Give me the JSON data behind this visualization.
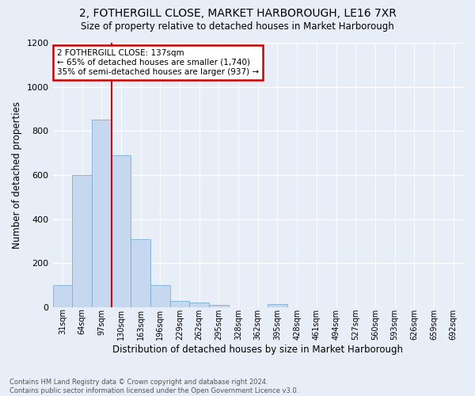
{
  "title": "2, FOTHERGILL CLOSE, MARKET HARBOROUGH, LE16 7XR",
  "subtitle": "Size of property relative to detached houses in Market Harborough",
  "xlabel": "Distribution of detached houses by size in Market Harborough",
  "ylabel": "Number of detached properties",
  "footer_line1": "Contains HM Land Registry data © Crown copyright and database right 2024.",
  "footer_line2": "Contains public sector information licensed under the Open Government Licence v3.0.",
  "bar_labels": [
    "31sqm",
    "64sqm",
    "97sqm",
    "130sqm",
    "163sqm",
    "196sqm",
    "229sqm",
    "262sqm",
    "295sqm",
    "328sqm",
    "362sqm",
    "395sqm",
    "428sqm",
    "461sqm",
    "494sqm",
    "527sqm",
    "560sqm",
    "593sqm",
    "626sqm",
    "659sqm",
    "692sqm"
  ],
  "bar_values": [
    100,
    600,
    850,
    690,
    310,
    100,
    30,
    20,
    10,
    0,
    0,
    15,
    0,
    0,
    0,
    0,
    0,
    0,
    0,
    0,
    0
  ],
  "bar_color": "#c5d8f0",
  "bar_edgecolor": "#7aadd4",
  "background_color": "#e8eef8",
  "grid_color": "#ffffff",
  "ylim": [
    0,
    1200
  ],
  "yticks": [
    0,
    200,
    400,
    600,
    800,
    1000,
    1200
  ],
  "annotation_text_line1": "2 FOTHERGILL CLOSE: 137sqm",
  "annotation_text_line2": "← 65% of detached houses are smaller (1,740)",
  "annotation_text_line3": "35% of semi-detached houses are larger (937) →",
  "annotation_box_color": "#ffffff",
  "annotation_border_color": "#cc0000",
  "vline_color": "#cc0000",
  "vline_x_index": 2.5
}
